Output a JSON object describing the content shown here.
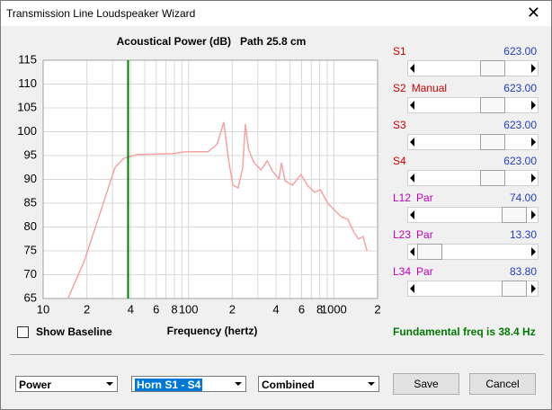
{
  "window": {
    "title": "Transmission Line Loudspeaker Wizard"
  },
  "chart_data": {
    "type": "line",
    "title": "Acoustical Power (dB)   Path 25.8 cm",
    "x_label": "Frequency (hertz)",
    "x_scale": "log",
    "xlim": [
      10,
      2000
    ],
    "ylim": [
      65,
      115
    ],
    "xticks": [
      10,
      {
        "value": 20,
        "label": "2"
      },
      {
        "value": 40,
        "label": "4"
      },
      {
        "value": 60,
        "label": "6"
      },
      {
        "value": 80,
        "label": "8"
      },
      100,
      {
        "value": 200,
        "label": "2"
      },
      {
        "value": 400,
        "label": "4"
      },
      {
        "value": 600,
        "label": "6"
      },
      {
        "value": 800,
        "label": "8"
      },
      1000,
      {
        "value": 2000,
        "label": "2"
      }
    ],
    "x_minor_ticks": [
      30,
      50,
      70,
      90,
      300,
      500,
      700,
      900
    ],
    "yticks": [
      65,
      70,
      75,
      80,
      85,
      90,
      95,
      100,
      105,
      110,
      115
    ],
    "grid": true,
    "grid_color": "#d8d8d8",
    "fundamental_x": 38.4,
    "fundamental_color": "#008000",
    "series": [
      {
        "color": "#f4a3a3",
        "x": [
          14.8,
          19.1,
          25.3,
          31.2,
          35.8,
          44.3,
          77.7,
          95.7,
          136,
          157,
          175,
          188,
          202,
          220,
          236,
          246,
          259,
          282,
          316,
          348,
          380,
          420,
          436,
          462,
          518,
          594,
          657,
          735,
          810,
          907,
          1000,
          1120,
          1250,
          1380,
          1480,
          1590,
          1690
        ],
        "values": [
          65,
          72.7,
          84,
          92.5,
          94.4,
          95.2,
          95.4,
          95.8,
          95.8,
          97.3,
          102,
          94.4,
          88.8,
          88.2,
          92.5,
          101.6,
          96.3,
          93.5,
          92,
          93.9,
          91.6,
          90.1,
          93.5,
          89.7,
          88.8,
          91,
          88.8,
          87.3,
          87.8,
          85,
          83.7,
          82.2,
          81.6,
          78.8,
          77.5,
          78,
          75
        ]
      }
    ]
  },
  "sliders": [
    {
      "name": "S1",
      "value": "623.00",
      "name_color": "#cc0000"
    },
    {
      "name": "S2",
      "mode": "Manual",
      "value": "623.00",
      "name_color": "#cc0000"
    },
    {
      "name": "S3",
      "value": "623.00",
      "name_color": "#cc0000"
    },
    {
      "name": "S4",
      "value": "623.00",
      "name_color": "#cc0000"
    },
    {
      "name": "L12",
      "mode": "Par",
      "value": "74.00",
      "name_color": "#c000c0"
    },
    {
      "name": "L23",
      "mode": "Par",
      "value": "13.30",
      "name_color": "#c000c0"
    },
    {
      "name": "L34",
      "mode": "Par",
      "value": "83.80",
      "name_color": "#c000c0"
    }
  ],
  "checkbox": {
    "label": "Show Baseline"
  },
  "status": "Fundamental freq is 38.4 Hz",
  "dropdowns": [
    "Power",
    "Horn S1 - S4",
    "Combined"
  ],
  "buttons": [
    "Save",
    "Cancel"
  ]
}
